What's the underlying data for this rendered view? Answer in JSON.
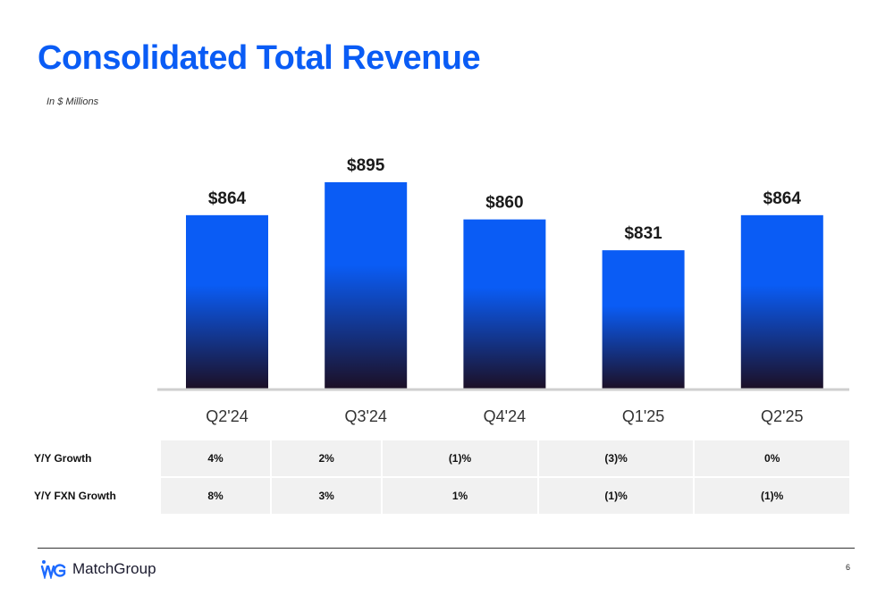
{
  "title": "Consolidated Total Revenue",
  "subtitle": "In $ Millions",
  "colors": {
    "title": "#0a5cf5",
    "bar_top": "#0a5cf5",
    "bar_bottom": "#1c0f24",
    "baseline": "#cfcfcf"
  },
  "chart_data": {
    "type": "bar",
    "title": "Consolidated Total Revenue",
    "ylabel": "In $ Millions",
    "categories": [
      "Q2'24",
      "Q3'24",
      "Q4'24",
      "Q1'25",
      "Q2'25"
    ],
    "values": [
      864,
      895,
      860,
      831,
      864
    ],
    "data_labels": [
      "$864",
      "$895",
      "$860",
      "$831",
      "$864"
    ],
    "grid": false
  },
  "metrics": {
    "rows": [
      {
        "label": "Y/Y Growth",
        "values": [
          "4%",
          "2%",
          "(1)%",
          "(3)%",
          "0%"
        ]
      },
      {
        "label": "Y/Y FXN Growth",
        "values": [
          "8%",
          "3%",
          "1%",
          "(1)%",
          "(1)%"
        ]
      }
    ]
  },
  "footer": {
    "brand": "MatchGroup",
    "page_number": "6",
    "logo_icon": "match-group-logo-icon"
  }
}
